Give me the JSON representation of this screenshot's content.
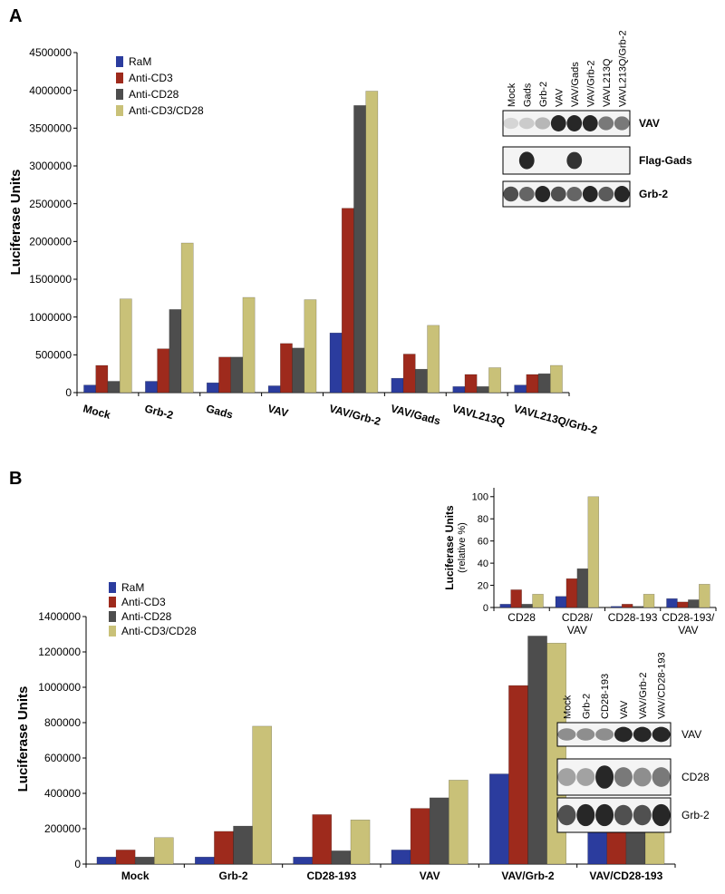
{
  "panel_labels": [
    "A",
    "B"
  ],
  "chart_data": [
    {
      "type": "bar",
      "ylabel": "Luciferase Units",
      "categories": [
        "Mock",
        "Grb-2",
        "Gads",
        "VAV",
        "VAV/Grb-2",
        "VAV/Gads",
        "VAVL213Q",
        "VAVL213Q/Grb-2"
      ],
      "series": [
        {
          "name": "RaM",
          "color": "#2b3c9e",
          "values": [
            100000,
            150000,
            130000,
            90000,
            790000,
            190000,
            80000,
            100000
          ]
        },
        {
          "name": "Anti-CD3",
          "color": "#9e2a1c",
          "values": [
            360000,
            580000,
            470000,
            650000,
            2440000,
            510000,
            240000,
            240000
          ]
        },
        {
          "name": "Anti-CD28",
          "color": "#4d4d4d",
          "values": [
            150000,
            1100000,
            470000,
            590000,
            3800000,
            310000,
            80000,
            250000
          ]
        },
        {
          "name": "Anti-CD3/CD28",
          "color": "#c9c178",
          "values": [
            1240000,
            1980000,
            1260000,
            1230000,
            3990000,
            890000,
            330000,
            360000
          ]
        }
      ],
      "ylim": [
        0,
        4500000
      ],
      "yticks": [
        0,
        500000,
        1000000,
        1500000,
        2000000,
        2500000,
        3000000,
        3500000,
        4000000,
        4500000
      ],
      "grid": false,
      "legend": "upper-left"
    },
    {
      "type": "bar",
      "ylabel": "Luciferase Units",
      "categories": [
        "Mock",
        "Grb-2",
        "CD28-193",
        "VAV",
        "VAV/Grb-2",
        "VAV/CD28-193"
      ],
      "series": [
        {
          "name": "RaM",
          "color": "#2b3c9e",
          "values": [
            40000,
            40000,
            40000,
            80000,
            510000,
            180000
          ]
        },
        {
          "name": "Anti-CD3",
          "color": "#9e2a1c",
          "values": [
            80000,
            185000,
            280000,
            315000,
            1010000,
            350000
          ]
        },
        {
          "name": "Anti-CD28",
          "color": "#4d4d4d",
          "values": [
            40000,
            215000,
            75000,
            375000,
            1290000,
            215000
          ]
        },
        {
          "name": "Anti-CD3/CD28",
          "color": "#c9c178",
          "values": [
            150000,
            780000,
            250000,
            475000,
            1250000,
            350000
          ]
        }
      ],
      "ylim": [
        0,
        1400000
      ],
      "yticks": [
        0,
        200000,
        400000,
        600000,
        800000,
        1000000,
        1200000,
        1400000
      ],
      "grid": false,
      "legend": "upper-left"
    },
    {
      "type": "bar",
      "ylabel": "Luciferase Units",
      "ylabel_note": "(relative %)",
      "categories": [
        "CD28",
        "CD28/ VAV",
        "CD28-193",
        "CD28-193/ VAV"
      ],
      "series": [
        {
          "color": "#2b3c9e",
          "values": [
            3,
            10,
            1,
            8
          ]
        },
        {
          "color": "#9e2a1c",
          "values": [
            16,
            26,
            3,
            5
          ]
        },
        {
          "color": "#4d4d4d",
          "values": [
            3,
            35,
            1,
            7
          ]
        },
        {
          "color": "#c9c178",
          "values": [
            12,
            100,
            12,
            21
          ]
        }
      ],
      "ylim": [
        0,
        108
      ],
      "yticks": [
        0,
        20,
        40,
        60,
        80,
        100
      ],
      "grid": false
    }
  ],
  "blots": [
    {
      "lanes": [
        "Mock",
        "Gads",
        "Grb-2",
        "VAV",
        "VAV/Gads",
        "VAV/Grb-2",
        "VAVL213Q",
        "VAVL213Q/Grb-2"
      ],
      "rows": [
        "VAV",
        "Flag-Gads",
        "Grb-2"
      ]
    },
    {
      "lanes": [
        "Mock",
        "Grb-2",
        "CD28-193",
        "VAV",
        "VAV/Grb-2",
        "VAV/CD28-193"
      ],
      "rows": [
        "VAV",
        "CD28",
        "Grb-2"
      ]
    }
  ]
}
